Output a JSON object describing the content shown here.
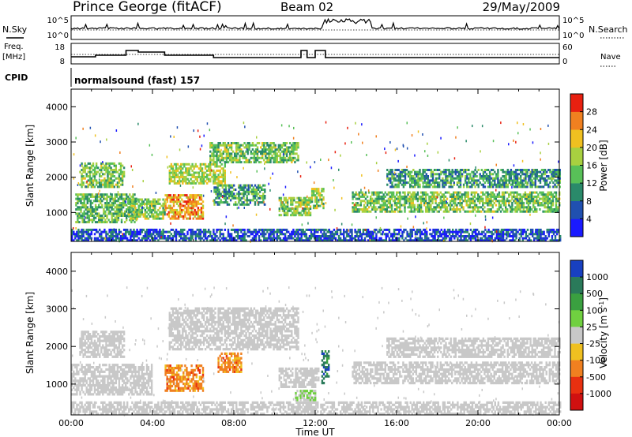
{
  "header": {
    "station": "Prince George (fitACF)",
    "beam": "Beam 02",
    "date": "29/May/2009"
  },
  "noise_panel": {
    "left_label": "N.Sky",
    "right_label": "N.Search",
    "left_ticks": [
      "10^5",
      "10^0"
    ],
    "right_ticks": [
      "10^5",
      "10^0"
    ]
  },
  "freq_panel": {
    "left_label_line1": "Freq.",
    "left_label_line2": "[MHz]",
    "right_label": "Nave",
    "left_ticks": [
      "18",
      "8"
    ],
    "right_ticks": [
      "60",
      "0"
    ]
  },
  "cpid": {
    "label": "CPID",
    "program": "normalsound (fast) 157"
  },
  "chart_data": [
    {
      "type": "heatmap",
      "name": "power",
      "ylabel": "Slant Range [km]",
      "yticks": [
        "1000",
        "2000",
        "3000",
        "4000"
      ],
      "ylim": [
        180,
        4500
      ],
      "xlim": [
        0,
        24
      ],
      "colorbar": {
        "label": "Power [dB]",
        "ticks": [
          "4",
          "8",
          "12",
          "16",
          "20",
          "24",
          "28"
        ],
        "colors": [
          "#1a1aff",
          "#2050b0",
          "#2a8a6a",
          "#58c058",
          "#a8d040",
          "#f0c020",
          "#f08020",
          "#e82010"
        ],
        "range": [
          0,
          32
        ]
      },
      "echo_regions": [
        {
          "t0": 0.2,
          "t1": 3.2,
          "r0": 700,
          "r1": 1500,
          "v": 14
        },
        {
          "t0": 0.4,
          "t1": 2.6,
          "r0": 1700,
          "r1": 2400,
          "v": 15
        },
        {
          "t0": 2.8,
          "t1": 4.6,
          "r0": 800,
          "r1": 1400,
          "v": 16
        },
        {
          "t0": 4.6,
          "t1": 6.5,
          "r0": 800,
          "r1": 1500,
          "v": 24
        },
        {
          "t0": 4.8,
          "t1": 7.6,
          "r0": 1800,
          "r1": 2400,
          "v": 18
        },
        {
          "t0": 6.8,
          "t1": 11.2,
          "r0": 2400,
          "r1": 3000,
          "v": 15
        },
        {
          "t0": 7.0,
          "t1": 9.5,
          "r0": 1200,
          "r1": 1800,
          "v": 12
        },
        {
          "t0": 10.2,
          "t1": 11.8,
          "r0": 900,
          "r1": 1400,
          "v": 16
        },
        {
          "t0": 11.8,
          "t1": 12.4,
          "r0": 1100,
          "r1": 1700,
          "v": 17
        },
        {
          "t0": 13.8,
          "t1": 24.0,
          "r0": 1000,
          "r1": 1600,
          "v": 15
        },
        {
          "t0": 15.5,
          "t1": 24.0,
          "r0": 1700,
          "r1": 2200,
          "v": 11
        },
        {
          "t0": 0.0,
          "t1": 24.0,
          "r0": 180,
          "r1": 500,
          "v": 6
        }
      ]
    },
    {
      "type": "heatmap",
      "name": "velocity",
      "ylabel": "Slant Range [km]",
      "yticks": [
        "1000",
        "2000",
        "3000",
        "4000"
      ],
      "ylim": [
        180,
        4500
      ],
      "xlim": [
        0,
        24
      ],
      "xlabel": "Time UT",
      "xticks": [
        "00:00",
        "04:00",
        "08:00",
        "12:00",
        "16:00",
        "20:00",
        "00:00"
      ],
      "colorbar": {
        "label": "Velocity [m s^-1]",
        "ticks": [
          "1000",
          "500",
          "100",
          "25",
          "-25",
          "-100",
          "-500",
          "-1000"
        ],
        "colors": [
          "#1840c0",
          "#2a7a5a",
          "#3aa040",
          "#70d040",
          "#c8c8c8",
          "#f0c020",
          "#f08020",
          "#e83010",
          "#d01010"
        ],
        "range": [
          -1200,
          1200
        ]
      },
      "echo_regions": [
        {
          "t0": 0.0,
          "t1": 4.0,
          "r0": 700,
          "r1": 1500,
          "v": 0
        },
        {
          "t0": 0.4,
          "t1": 2.6,
          "r0": 1700,
          "r1": 2400,
          "v": 0
        },
        {
          "t0": 4.6,
          "t1": 6.5,
          "r0": 800,
          "r1": 1500,
          "v": -500
        },
        {
          "t0": 7.2,
          "t1": 8.4,
          "r0": 1300,
          "r1": 1800,
          "v": -500
        },
        {
          "t0": 4.8,
          "t1": 11.2,
          "r0": 1900,
          "r1": 3000,
          "v": 0
        },
        {
          "t0": 10.2,
          "t1": 12.2,
          "r0": 900,
          "r1": 1400,
          "v": 0
        },
        {
          "t0": 12.3,
          "t1": 12.7,
          "r0": 1000,
          "r1": 1900,
          "v": 800
        },
        {
          "t0": 11.0,
          "t1": 12.0,
          "r0": 550,
          "r1": 800,
          "v": 150
        },
        {
          "t0": 13.8,
          "t1": 24.0,
          "r0": 1000,
          "r1": 1600,
          "v": 0
        },
        {
          "t0": 15.5,
          "t1": 24.0,
          "r0": 1700,
          "r1": 2200,
          "v": 0
        },
        {
          "t0": 0.0,
          "t1": 24.0,
          "r0": 180,
          "r1": 500,
          "v": 0
        }
      ]
    }
  ]
}
